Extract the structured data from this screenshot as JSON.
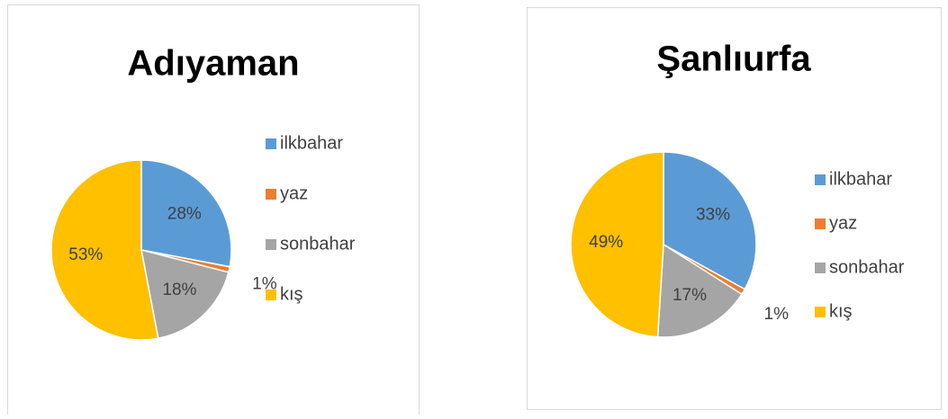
{
  "chart_data": [
    {
      "type": "pie",
      "title": "Adıyaman",
      "categories": [
        "ilkbahar",
        "yaz",
        "sonbahar",
        "kış"
      ],
      "values": [
        28,
        1,
        18,
        53
      ],
      "value_labels": [
        "28%",
        "1%",
        "18%",
        "53%"
      ],
      "colors": [
        "#5b9bd5",
        "#ed7d31",
        "#a5a5a5",
        "#ffc000"
      ],
      "legend": "right"
    },
    {
      "type": "pie",
      "title": "Şanlıurfa",
      "categories": [
        "ilkbahar",
        "yaz",
        "sonbahar",
        "kış"
      ],
      "values": [
        33,
        1,
        17,
        49
      ],
      "value_labels": [
        "33%",
        "1%",
        "17%",
        "49%"
      ],
      "colors": [
        "#5b9bd5",
        "#ed7d31",
        "#a5a5a5",
        "#ffc000"
      ],
      "legend": "right"
    }
  ]
}
